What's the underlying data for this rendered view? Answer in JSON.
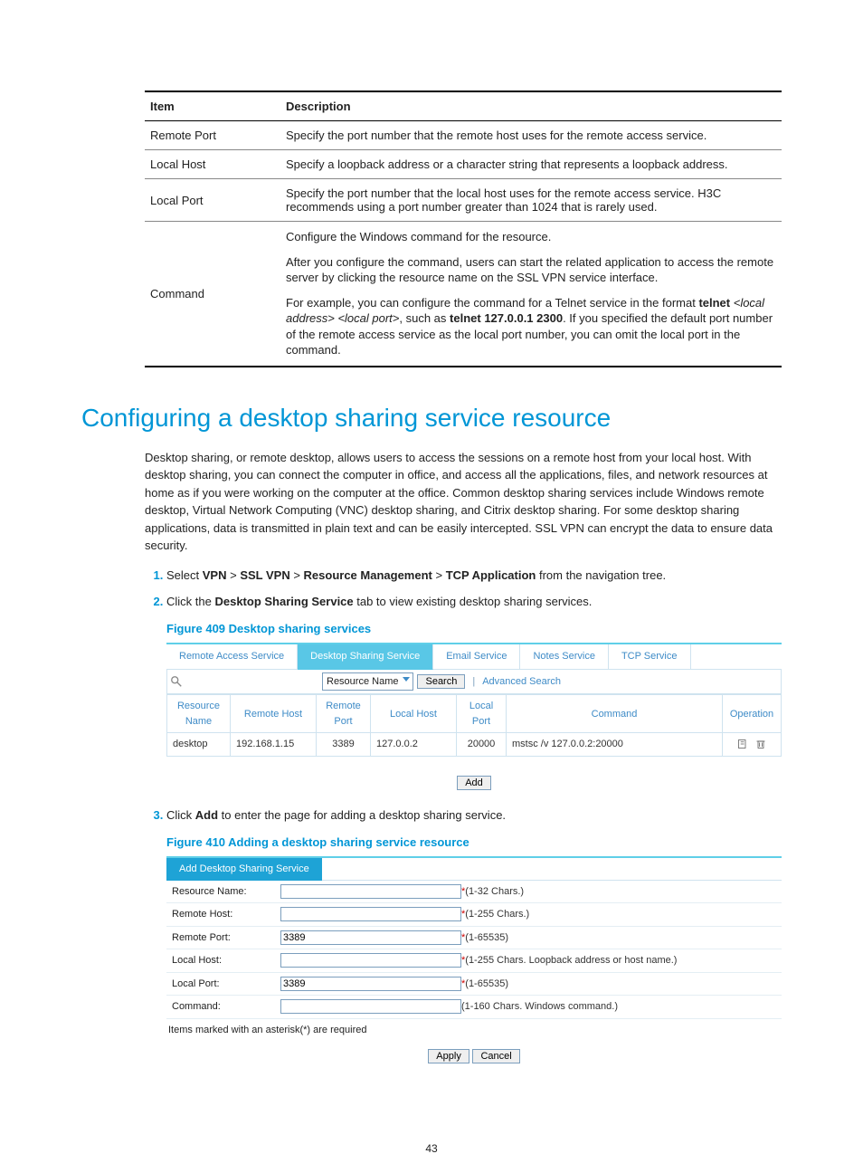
{
  "descTable": {
    "headers": [
      "Item",
      "Description"
    ],
    "rows": {
      "remotePort": {
        "item": "Remote Port",
        "desc": "Specify the port number that the remote host uses for the remote access service."
      },
      "localHost": {
        "item": "Local Host",
        "desc": "Specify a loopback address or a character string that represents a loopback address."
      },
      "localPort": {
        "item": "Local Port",
        "desc": "Specify the port number that the local host uses for the remote access service. H3C recommends using a port number greater than 1024 that is rarely used."
      },
      "command": {
        "item": "Command",
        "p1": "Configure the Windows command for the resource.",
        "p2": "After you configure the command, users can start the related application to access the remote server by clicking the resource name on the SSL VPN service interface.",
        "p3a": "For example, you can configure the command for a Telnet service in the format ",
        "p3b": "telnet",
        "p3c": " <local address> <local port>",
        "p3d": ", such as ",
        "p3e": "telnet 127.0.0.1 2300",
        "p3f": ". If you specified the default port number of the remote access service as the local port number, you can omit the local port in the command."
      }
    }
  },
  "heading": "Configuring a desktop sharing service resource",
  "intro": "Desktop sharing, or remote desktop, allows users to access the sessions on a remote host from your local host. With desktop sharing, you can connect the computer in office, and access all the applications, files, and network resources at home as if you were working on the computer at the office. Common desktop sharing services include Windows remote desktop, Virtual Network Computing (VNC) desktop sharing, and Citrix desktop sharing. For some desktop sharing applications, data is transmitted in plain text and can be easily intercepted. SSL VPN can encrypt the data to ensure data security.",
  "steps": {
    "s1a": "Select ",
    "s1b": "VPN",
    "s1c": " > ",
    "s1d": "SSL VPN",
    "s1e": " > ",
    "s1f": "Resource Management",
    "s1g": " > ",
    "s1h": "TCP Application",
    "s1i": " from the navigation tree.",
    "s2a": "Click the ",
    "s2b": "Desktop Sharing Service",
    "s2c": " tab to view existing desktop sharing services.",
    "s3a": "Click ",
    "s3b": "Add",
    "s3c": " to enter the page for adding a desktop sharing service."
  },
  "fig409": {
    "caption": "Figure 409 Desktop sharing services",
    "tabs": [
      "Remote Access Service",
      "Desktop Sharing Service",
      "Email Service",
      "Notes Service",
      "TCP Service"
    ],
    "activeTab": 1,
    "searchSelect": "Resource Name",
    "searchButton": "Search",
    "advanced": "Advanced Search",
    "headers": [
      "Resource Name",
      "Remote Host",
      "Remote Port",
      "Local Host",
      "Local Port",
      "Command",
      "Operation"
    ],
    "row": [
      "desktop",
      "192.168.1.15",
      "3389",
      "127.0.0.2",
      "20000",
      "mstsc /v 127.0.0.2:20000"
    ],
    "addButton": "Add"
  },
  "fig410": {
    "caption": "Figure 410 Adding a desktop sharing service resource",
    "tabTitle": "Add Desktop Sharing Service",
    "rows": [
      {
        "label": "Resource Name:",
        "value": "",
        "hint": "(1-32 Chars.)",
        "req": true
      },
      {
        "label": "Remote Host:",
        "value": "",
        "hint": "(1-255 Chars.)",
        "req": true
      },
      {
        "label": "Remote Port:",
        "value": "3389",
        "hint": "(1-65535)",
        "req": true
      },
      {
        "label": "Local Host:",
        "value": "",
        "hint": "(1-255 Chars. Loopback address or host name.)",
        "req": true
      },
      {
        "label": "Local Port:",
        "value": "3389",
        "hint": "(1-65535)",
        "req": true
      },
      {
        "label": "Command:",
        "value": "",
        "hint": "(1-160 Chars. Windows command.)",
        "req": false
      }
    ],
    "note": "Items marked with an asterisk(*) are required",
    "apply": "Apply",
    "cancel": "Cancel"
  },
  "pageNumber": "43",
  "colors": {
    "accent": "#0096d6",
    "tabActive": "#59c7e6",
    "linkBlue": "#3e8bc7",
    "asterisk": "#c00"
  }
}
